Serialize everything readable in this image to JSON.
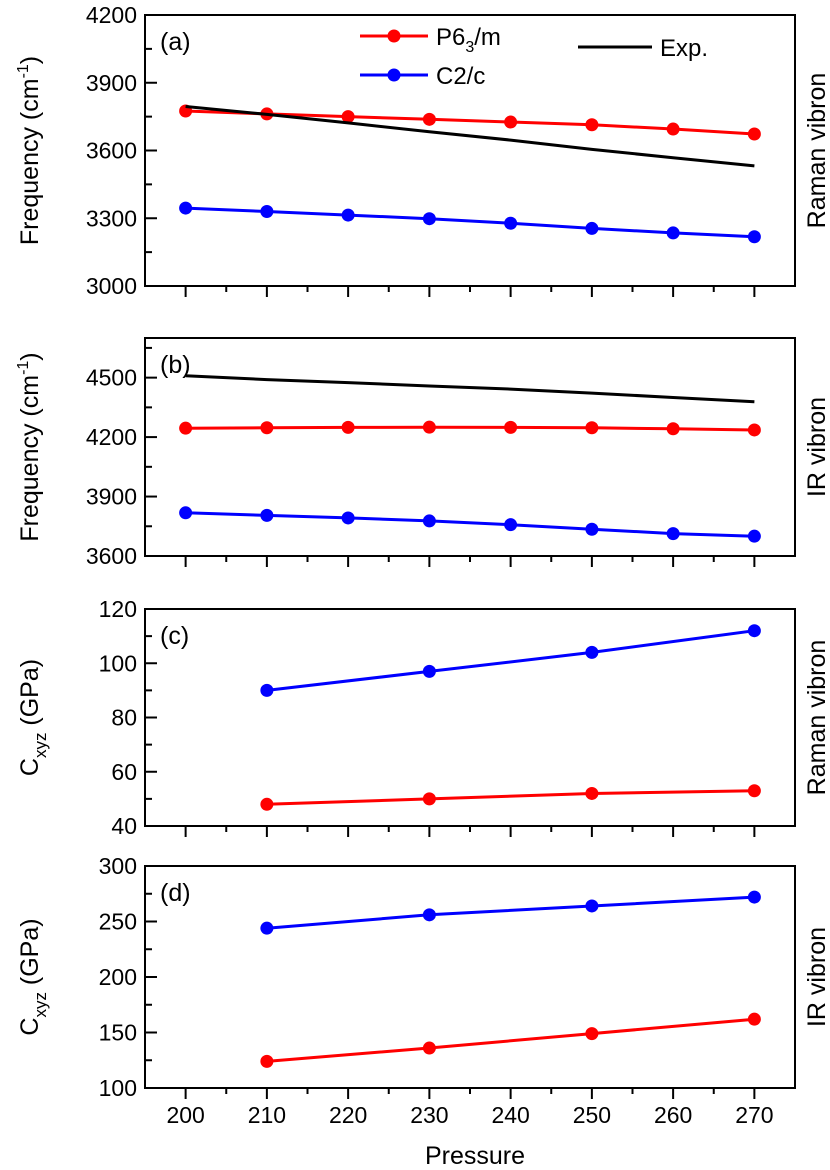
{
  "figure": {
    "xlabel": "Pressure",
    "x_ticks": [
      200,
      210,
      220,
      230,
      240,
      250,
      260,
      270
    ],
    "xlim": [
      195,
      275
    ],
    "colors": {
      "P6_3/m": "#ff0000",
      "C2/c": "#0000ff",
      "Exp.": "#000000"
    }
  },
  "legend": {
    "entries": [
      {
        "name": "P6_3/m",
        "main": "P6",
        "sub": "3",
        "tail": "/m",
        "color": "#ff0000",
        "marker": true
      },
      {
        "name": "C2/c",
        "main": "C2/c",
        "sub": "",
        "tail": "",
        "color": "#0000ff",
        "marker": true
      },
      {
        "name": "Exp.",
        "main": "Exp.",
        "sub": "",
        "tail": "",
        "color": "#000000",
        "marker": false
      }
    ]
  },
  "chart_data": [
    {
      "type": "line",
      "panel_label": "(a)",
      "side_label": "Raman vibron",
      "ylabel": {
        "main": "Frequency (cm",
        "sup": "-1",
        "tail": ")"
      },
      "ylim": [
        3000,
        4200
      ],
      "y_ticks": [
        3000,
        3300,
        3600,
        3900,
        4200
      ],
      "y_minor": [
        3150,
        3450,
        3750,
        4050
      ],
      "series": [
        {
          "name": "P6_3/m",
          "color": "#ff0000",
          "markers": true,
          "x": [
            200,
            210,
            220,
            230,
            240,
            250,
            260,
            270
          ],
          "y": [
            3775,
            3762,
            3750,
            3738,
            3726,
            3714,
            3695,
            3673
          ]
        },
        {
          "name": "C2/c",
          "color": "#0000ff",
          "markers": true,
          "x": [
            200,
            210,
            220,
            230,
            240,
            250,
            260,
            270
          ],
          "y": [
            3345,
            3330,
            3314,
            3298,
            3278,
            3255,
            3235,
            3218
          ]
        },
        {
          "name": "Exp.",
          "color": "#000000",
          "markers": false,
          "x": [
            200,
            210,
            220,
            230,
            240,
            250,
            260,
            270
          ],
          "y": [
            3795,
            3760,
            3722,
            3683,
            3646,
            3605,
            3568,
            3532
          ]
        }
      ]
    },
    {
      "type": "line",
      "panel_label": "(b)",
      "side_label": "IR vibron",
      "ylabel": {
        "main": "Frequency (cm",
        "sup": "-1",
        "tail": ")"
      },
      "ylim": [
        3600,
        4700
      ],
      "y_ticks": [
        3600,
        3900,
        4200,
        4500
      ],
      "y_minor": [
        3750,
        4050,
        4350,
        4650
      ],
      "series": [
        {
          "name": "P6_3/m",
          "color": "#ff0000",
          "markers": true,
          "x": [
            200,
            210,
            220,
            230,
            240,
            250,
            260,
            270
          ],
          "y": [
            4245,
            4247,
            4249,
            4250,
            4249,
            4247,
            4242,
            4236
          ]
        },
        {
          "name": "C2/c",
          "color": "#0000ff",
          "markers": true,
          "x": [
            200,
            210,
            220,
            230,
            240,
            250,
            260,
            270
          ],
          "y": [
            3818,
            3805,
            3792,
            3777,
            3758,
            3735,
            3713,
            3700
          ]
        },
        {
          "name": "Exp.",
          "color": "#000000",
          "markers": false,
          "x": [
            200,
            210,
            220,
            230,
            240,
            250,
            260,
            270
          ],
          "y": [
            4510,
            4490,
            4475,
            4458,
            4442,
            4422,
            4400,
            4378
          ]
        }
      ]
    },
    {
      "type": "line",
      "panel_label": "(c)",
      "side_label": "Raman vibron",
      "ylabel": {
        "main": "C",
        "sub": "xyz",
        "tail": " (GPa)"
      },
      "ylim": [
        40,
        120
      ],
      "y_ticks": [
        40,
        60,
        80,
        100,
        120
      ],
      "y_minor": [
        50,
        70,
        90,
        110
      ],
      "series": [
        {
          "name": "P6_3/m",
          "color": "#ff0000",
          "markers": true,
          "x": [
            210,
            230,
            250,
            270
          ],
          "y": [
            48,
            50,
            52,
            53
          ]
        },
        {
          "name": "C2/c",
          "color": "#0000ff",
          "markers": true,
          "x": [
            210,
            230,
            250,
            270
          ],
          "y": [
            90,
            97,
            104,
            112
          ]
        }
      ]
    },
    {
      "type": "line",
      "panel_label": "(d)",
      "side_label": "IR vibron",
      "ylabel": {
        "main": "C",
        "sub": "xyz",
        "tail": " (GPa)"
      },
      "ylim": [
        100,
        300
      ],
      "y_ticks": [
        100,
        150,
        200,
        250,
        300
      ],
      "y_minor": [
        125,
        175,
        225,
        275
      ],
      "series": [
        {
          "name": "P6_3/m",
          "color": "#ff0000",
          "markers": true,
          "x": [
            210,
            230,
            250,
            270
          ],
          "y": [
            124,
            136,
            149,
            162
          ]
        },
        {
          "name": "C2/c",
          "color": "#0000ff",
          "markers": true,
          "x": [
            210,
            230,
            250,
            270
          ],
          "y": [
            244,
            256,
            264,
            272
          ]
        }
      ]
    }
  ]
}
